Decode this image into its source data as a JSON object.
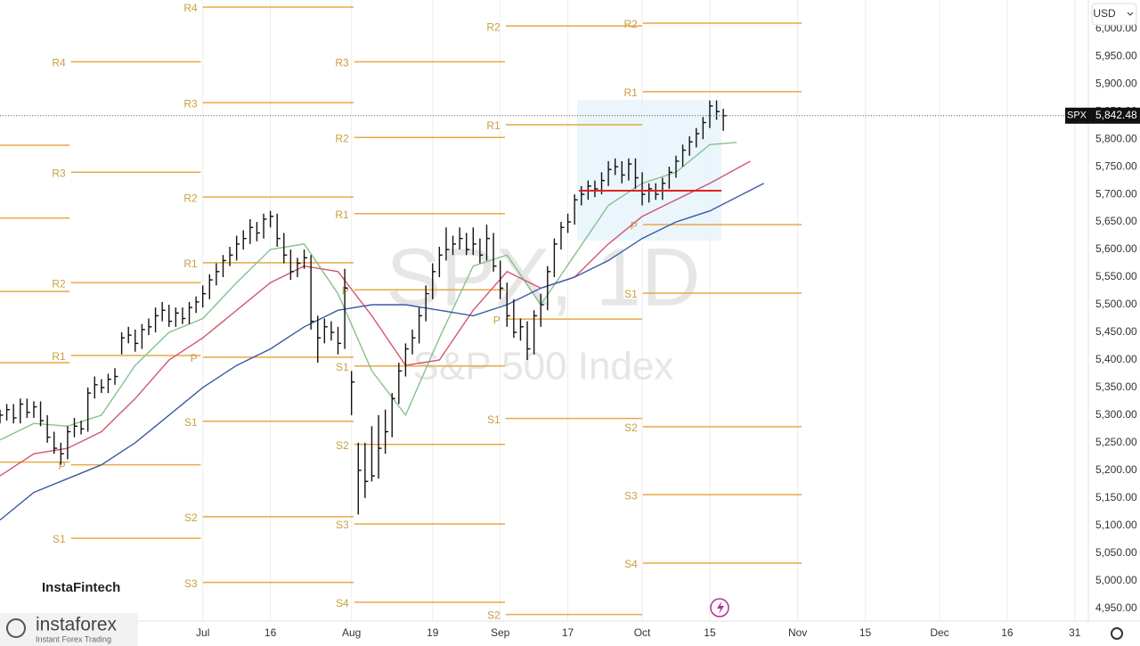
{
  "chart_data": {
    "type": "ohlc",
    "symbol": "SPX, 1D",
    "subtitle": "S&P 500 Index",
    "currency": "USD",
    "brand": "InstaFintech",
    "logo": "instaforex",
    "logo_tagline": "Instant Forex Trading",
    "grid": true,
    "bar_color": "#111111",
    "pivot_color": "#e8a845",
    "xlim": [
      0,
      161
    ],
    "ylim": [
      4927,
      6052
    ],
    "xticks": [
      {
        "value": 30,
        "label": "Jul"
      },
      {
        "value": 40,
        "label": "16"
      },
      {
        "value": 52,
        "label": "Aug"
      },
      {
        "value": 64,
        "label": "19"
      },
      {
        "value": 74,
        "label": "Sep"
      },
      {
        "value": 84,
        "label": "17"
      },
      {
        "value": 95,
        "label": "Oct"
      },
      {
        "value": 105,
        "label": "15"
      },
      {
        "value": 118,
        "label": "Nov"
      },
      {
        "value": 128,
        "label": "15"
      },
      {
        "value": 139,
        "label": "Dec"
      },
      {
        "value": 149,
        "label": "16"
      },
      {
        "value": 159,
        "label": "31"
      }
    ],
    "yticks": [
      {
        "value": 4950,
        "label": "4,950.00"
      },
      {
        "value": 5000,
        "label": "5,000.00"
      },
      {
        "value": 5050,
        "label": "5,050.00"
      },
      {
        "value": 5100,
        "label": "5,100.00"
      },
      {
        "value": 5150,
        "label": "5,150.00"
      },
      {
        "value": 5200,
        "label": "5,200.00"
      },
      {
        "value": 5250,
        "label": "5,250.00"
      },
      {
        "value": 5300,
        "label": "5,300.00"
      },
      {
        "value": 5350,
        "label": "5,350.00"
      },
      {
        "value": 5400,
        "label": "5,400.00"
      },
      {
        "value": 5450,
        "label": "5,450.00"
      },
      {
        "value": 5500,
        "label": "5,500.00"
      },
      {
        "value": 5550,
        "label": "5,550.00"
      },
      {
        "value": 5600,
        "label": "5,600.00"
      },
      {
        "value": 5650,
        "label": "5,650.00"
      },
      {
        "value": 5700,
        "label": "5,700.00"
      },
      {
        "value": 5750,
        "label": "5,750.00"
      },
      {
        "value": 5800,
        "label": "5,800.00"
      },
      {
        "value": 5850,
        "label": "5,850.00"
      },
      {
        "value": 5900,
        "label": "5,900.00"
      },
      {
        "value": 5950,
        "label": "5,950.00"
      },
      {
        "value": 6000,
        "label": "6,000.00"
      }
    ],
    "last_price": {
      "symbol": "SPX",
      "value": 5842.48,
      "label": "5,842.48"
    },
    "x": [
      0,
      1,
      2,
      3,
      4,
      5,
      6,
      7,
      8,
      9,
      10,
      11,
      12,
      13,
      14,
      15,
      16,
      17,
      18,
      19,
      20,
      21,
      22,
      23,
      24,
      25,
      26,
      27,
      28,
      29,
      30,
      31,
      32,
      33,
      34,
      35,
      36,
      37,
      38,
      39,
      40,
      41,
      42,
      43,
      44,
      45,
      46,
      47,
      48,
      49,
      50,
      51,
      52,
      53,
      54,
      55,
      56,
      57,
      58,
      59,
      60,
      61,
      62,
      63,
      64,
      65,
      66,
      67,
      68,
      69,
      70,
      71,
      72,
      73,
      74,
      75,
      76,
      77,
      78,
      79,
      80,
      81,
      82,
      83,
      84,
      85,
      86,
      87,
      88,
      89,
      90,
      91,
      92,
      93,
      94,
      95,
      96,
      97,
      98,
      99,
      100,
      101,
      102,
      103,
      104,
      105,
      106,
      107
    ],
    "high": [
      5310,
      5320,
      5320,
      5330,
      5330,
      5325,
      5325,
      5300,
      5270,
      5250,
      5280,
      5295,
      5290,
      5350,
      5370,
      5365,
      5375,
      5385,
      5450,
      5460,
      5455,
      5465,
      5475,
      5495,
      5505,
      5500,
      5495,
      5495,
      5505,
      5515,
      5535,
      5555,
      5575,
      5590,
      5605,
      5625,
      5635,
      5655,
      5650,
      5665,
      5670,
      5665,
      5630,
      5600,
      5585,
      5600,
      5590,
      5480,
      5475,
      5470,
      5460,
      5565,
      5380,
      5250,
      5250,
      5280,
      5300,
      5310,
      5340,
      5395,
      5430,
      5455,
      5495,
      5535,
      5575,
      5605,
      5640,
      5625,
      5640,
      5630,
      5640,
      5620,
      5645,
      5630,
      5580,
      5540,
      5510,
      5475,
      5470,
      5490,
      5520,
      5570,
      5620,
      5650,
      5665,
      5700,
      5715,
      5725,
      5725,
      5740,
      5760,
      5765,
      5760,
      5765,
      5765,
      5740,
      5720,
      5720,
      5730,
      5750,
      5770,
      5790,
      5805,
      5820,
      5840,
      5870,
      5870,
      5855
    ],
    "low": [
      5285,
      5290,
      5285,
      5285,
      5295,
      5295,
      5280,
      5250,
      5230,
      5210,
      5220,
      5260,
      5265,
      5270,
      5330,
      5340,
      5340,
      5355,
      5410,
      5430,
      5415,
      5420,
      5445,
      5450,
      5470,
      5460,
      5460,
      5465,
      5465,
      5485,
      5495,
      5510,
      5535,
      5550,
      5570,
      5580,
      5600,
      5610,
      5615,
      5620,
      5640,
      5605,
      5575,
      5545,
      5550,
      5565,
      5455,
      5395,
      5430,
      5435,
      5410,
      5420,
      5300,
      5120,
      5150,
      5180,
      5185,
      5230,
      5260,
      5320,
      5370,
      5410,
      5430,
      5470,
      5510,
      5550,
      5580,
      5590,
      5600,
      5590,
      5590,
      5575,
      5580,
      5560,
      5510,
      5460,
      5440,
      5435,
      5400,
      5410,
      5460,
      5490,
      5550,
      5600,
      5630,
      5645,
      5680,
      5690,
      5695,
      5700,
      5715,
      5735,
      5720,
      5725,
      5710,
      5680,
      5685,
      5690,
      5690,
      5710,
      5730,
      5750,
      5770,
      5785,
      5800,
      5820,
      5835,
      5815
    ],
    "close": [
      5300,
      5310,
      5295,
      5320,
      5305,
      5315,
      5290,
      5260,
      5240,
      5230,
      5270,
      5280,
      5275,
      5340,
      5355,
      5350,
      5365,
      5370,
      5440,
      5445,
      5430,
      5455,
      5460,
      5480,
      5490,
      5470,
      5485,
      5475,
      5495,
      5505,
      5520,
      5545,
      5560,
      5580,
      5590,
      5610,
      5620,
      5640,
      5630,
      5655,
      5660,
      5620,
      5590,
      5560,
      5575,
      5585,
      5470,
      5440,
      5460,
      5450,
      5430,
      5530,
      5360,
      5200,
      5180,
      5190,
      5240,
      5270,
      5330,
      5380,
      5420,
      5440,
      5480,
      5520,
      5560,
      5590,
      5600,
      5610,
      5620,
      5600,
      5610,
      5590,
      5620,
      5570,
      5530,
      5480,
      5450,
      5460,
      5420,
      5480,
      5500,
      5560,
      5610,
      5640,
      5650,
      5690,
      5700,
      5715,
      5710,
      5725,
      5745,
      5750,
      5735,
      5755,
      5730,
      5700,
      5710,
      5700,
      5720,
      5740,
      5760,
      5780,
      5795,
      5810,
      5830,
      5860,
      5850,
      5842.48
    ],
    "series": [
      {
        "color": "#86c28c",
        "x": [
          0,
          5,
          10,
          15,
          20,
          25,
          30,
          35,
          40,
          45,
          50,
          55,
          60,
          65,
          70,
          75,
          80,
          85,
          90,
          95,
          100,
          105,
          109
        ],
        "values": [
          5255,
          5285,
          5280,
          5300,
          5390,
          5450,
          5475,
          5540,
          5600,
          5610,
          5520,
          5380,
          5300,
          5440,
          5570,
          5590,
          5500,
          5590,
          5680,
          5720,
          5740,
          5790,
          5794
        ]
      },
      {
        "color": "#d4566e",
        "x": [
          0,
          5,
          10,
          15,
          20,
          25,
          30,
          35,
          40,
          45,
          50,
          55,
          60,
          65,
          70,
          75,
          80,
          85,
          90,
          95,
          100,
          105,
          111
        ],
        "values": [
          5190,
          5230,
          5240,
          5270,
          5330,
          5400,
          5440,
          5490,
          5540,
          5570,
          5560,
          5480,
          5390,
          5400,
          5490,
          5560,
          5530,
          5550,
          5610,
          5660,
          5690,
          5720,
          5760
        ]
      },
      {
        "color": "#3b5aa5",
        "x": [
          0,
          5,
          10,
          15,
          20,
          25,
          30,
          35,
          40,
          45,
          50,
          55,
          60,
          65,
          70,
          75,
          80,
          85,
          90,
          95,
          100,
          105,
          113
        ],
        "values": [
          5110,
          5160,
          5185,
          5210,
          5250,
          5300,
          5350,
          5390,
          5420,
          5460,
          5490,
          5500,
          5500,
          5490,
          5480,
          5500,
          5530,
          5550,
          5580,
          5620,
          5650,
          5670,
          5720
        ]
      }
    ],
    "pivots": [
      {
        "start": 0,
        "end": 10.3,
        "levels": [
          5789,
          5657,
          5524,
          5395,
          5215
        ]
      },
      {
        "start": 10.5,
        "end": 29.7,
        "levels": [
          5940,
          5740,
          5540,
          5408,
          5210,
          5077
        ],
        "labels": [
          "R4",
          "R3",
          "R2",
          "R1",
          "P",
          "S1"
        ]
      },
      {
        "start": 30,
        "end": 52.3,
        "levels": [
          6039,
          5866,
          5695,
          5576,
          5405,
          5289,
          5116,
          4997
        ],
        "labels": [
          "R4",
          "R3",
          "R2",
          "R1",
          "P",
          "S1",
          "S2",
          "S3"
        ]
      },
      {
        "start": 52.4,
        "end": 74.7,
        "levels": [
          5940,
          5803,
          5665,
          5527,
          5389,
          5247,
          5103,
          4961
        ],
        "labels": [
          "R3",
          "R2",
          "R1",
          "P",
          "S1",
          "S2",
          "S3",
          "S4"
        ]
      },
      {
        "start": 74.8,
        "end": 95,
        "levels": [
          6005,
          5826,
          5474,
          5294,
          4939
        ],
        "labels": [
          "R2",
          "R1",
          "P",
          "S1",
          "S2"
        ]
      },
      {
        "start": 95.1,
        "end": 118.6,
        "levels": [
          6010,
          5886,
          5645,
          5521,
          5279,
          5156,
          5032
        ],
        "labels": [
          "R2",
          "R1",
          "P",
          "S1",
          "S2",
          "S3",
          "S4"
        ]
      }
    ]
  }
}
